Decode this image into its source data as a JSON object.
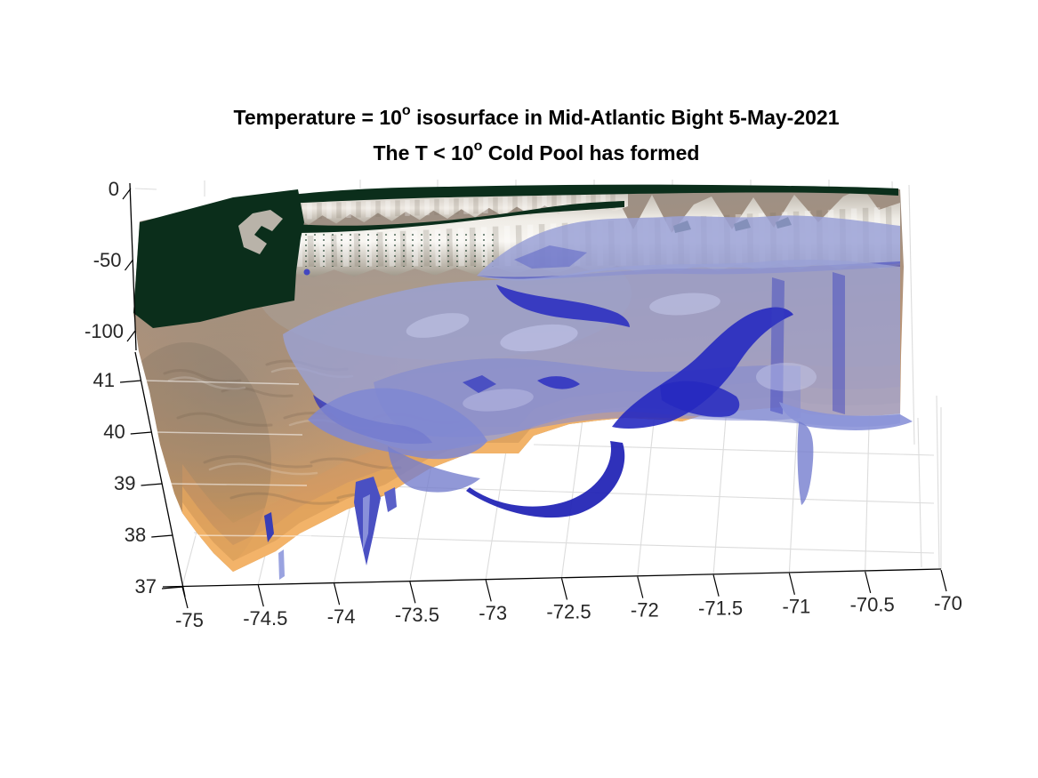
{
  "figure": {
    "title": {
      "line1_pre": "Temperature = 10",
      "line1_sup": "o",
      "line1_post": " isosurface in Mid-Atlantic Bight 5-May-2021",
      "line2_pre": "The T < 10",
      "line2_sup": "o",
      "line2_post": " Cold Pool has formed"
    },
    "background": "#ffffff"
  },
  "chart_data": {
    "type": "surface",
    "subtype": "3d-isosurface-bathymetry",
    "title": "Temperature = 10° isosurface in Mid-Atlantic Bight 5-May-2021",
    "subtitle": "The T < 10° Cold Pool has formed",
    "date_shown": "5-May-2021",
    "x_axis": {
      "meaning": "longitude",
      "ticks": [
        "-75",
        "-74.5",
        "-74",
        "-73.5",
        "-73",
        "-72.5",
        "-72",
        "-71.5",
        "-71",
        "-70.5",
        "-70"
      ],
      "range": [
        -75,
        -70
      ]
    },
    "y_axis": {
      "meaning": "latitude",
      "ticks_top_to_bottom": [
        "41",
        "40",
        "39",
        "38",
        "37"
      ],
      "range": [
        37,
        41
      ]
    },
    "z_axis": {
      "meaning": "depth (m)",
      "ticks_top_to_bottom": [
        "0",
        "-50",
        "-100"
      ],
      "range": [
        -100,
        0
      ]
    },
    "grid": true,
    "legend": false,
    "elements": [
      {
        "name": "land-surface",
        "description": "flat dark-green land area along the northwest coast",
        "color": "#0b2e1b"
      },
      {
        "name": "coastline-cliff-wall",
        "description": "white/gray vertical wall where the model volume is cut at the coast",
        "color": "#efece6"
      },
      {
        "name": "shelf-seafloor",
        "description": "copper-shaded bathymetry sloping to the orange shelf break",
        "color_top": "#978f88",
        "color_mid": "#bb9575",
        "color_edge": "#edad5c"
      },
      {
        "name": "cold-pool-isosurface",
        "description": "translucent blue T = 10° isosurface enclosing the T < 10° cold pool water",
        "color_light": "#9aa1d6",
        "color_dark": "#2629c0",
        "opacity": 0.8
      }
    ]
  },
  "axis_style": {
    "tick_color": "#262626",
    "axis_color": "#000000",
    "grid_color": "#dcdcdc"
  }
}
